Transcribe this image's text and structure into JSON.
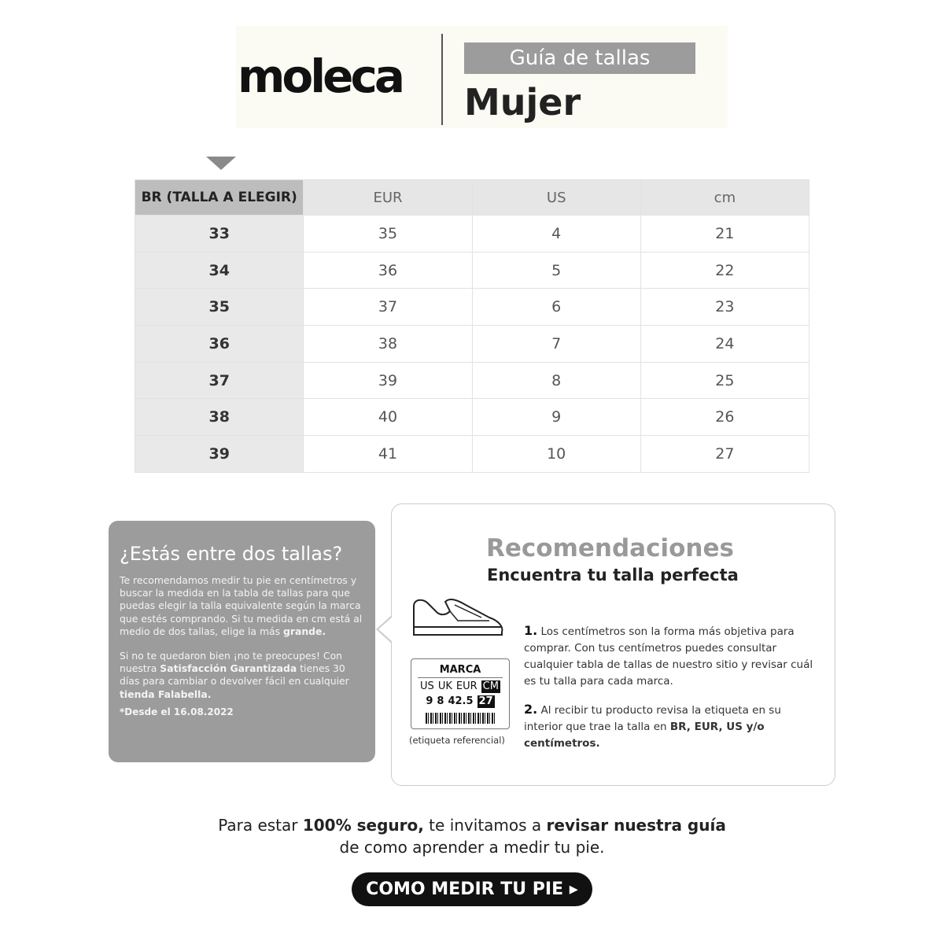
{
  "header": {
    "logo": "moleca",
    "guide_label": "Guía de tallas",
    "gender": "Mujer"
  },
  "table": {
    "headers": [
      "BR (TALLA A ELEGIR)",
      "EUR",
      "US",
      "cm"
    ],
    "rows": [
      [
        "33",
        "35",
        "4",
        "21"
      ],
      [
        "34",
        "36",
        "5",
        "22"
      ],
      [
        "35",
        "37",
        "6",
        "23"
      ],
      [
        "36",
        "38",
        "7",
        "24"
      ],
      [
        "37",
        "39",
        "8",
        "25"
      ],
      [
        "38",
        "40",
        "9",
        "26"
      ],
      [
        "39",
        "41",
        "10",
        "27"
      ]
    ]
  },
  "between": {
    "title": "¿Estás entre dos tallas?",
    "p1": "Te recomendamos medir tu pie en centímetros y buscar la medida en la tabla de tallas para que puedas elegir la talla equivalente según la marca que estés comprando. Si tu medida en cm está al medio de dos tallas, elige la más ",
    "p1_bold": "grande.",
    "p2a": "Si no te quedaron bien ¡no te preocupes! Con nuestra ",
    "p2_bold1": "Satisfacción Garantizada",
    "p2b": " tienes 30 días para cambiar o devolver fácil en cualquier ",
    "p2_bold2": "tienda Falabella.",
    "since": "*Desde el 16.08.2022"
  },
  "recommendations": {
    "title": "Recomendaciones",
    "subtitle": "Encuentra tu talla perfecta",
    "label": {
      "brand": "MARCA",
      "cols": [
        "US",
        "UK",
        "EUR",
        "CM"
      ],
      "vals": [
        "9",
        "8",
        "42.5",
        "27"
      ],
      "caption": "(etiqueta referencial)"
    },
    "step1_num": "1.",
    "step1": "Los centímetros son la forma más objetiva para comprar. Con tus centímetros puedes consultar cualquier tabla de tallas de nuestro sitio y revisar cuál es tu talla para cada marca.",
    "step2_num": "2.",
    "step2a": "Al recibir tu producto revisa la etiqueta en su interior que trae la talla en ",
    "step2_bold": "BR, EUR, US y/o centímetros."
  },
  "bottom": {
    "l1a": "Para estar ",
    "l1b": "100% seguro,",
    "l1c": " te invitamos a ",
    "l1d": "revisar nuestra guía",
    "l2": "de como aprender a medir tu pie.",
    "cta": "COMO MEDIR TU PIE"
  }
}
